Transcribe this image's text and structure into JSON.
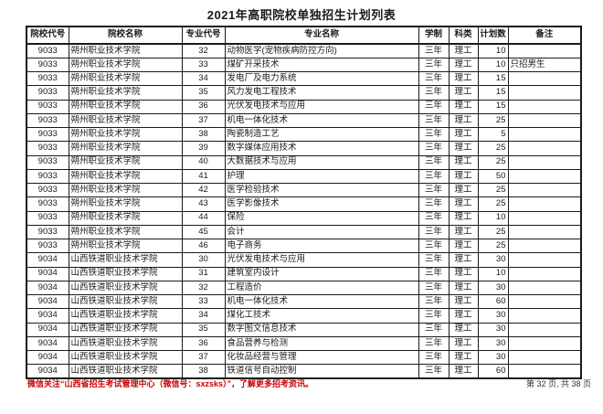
{
  "title": "2021年高职院校单独招生计划列表",
  "table": {
    "headers": [
      "院校代号",
      "院校名称",
      "专业代号",
      "专业名称",
      "学制",
      "科类",
      "计划数",
      "备注"
    ],
    "col_aligns": [
      "center",
      "left",
      "center",
      "left",
      "center",
      "center",
      "right",
      "left"
    ],
    "rows": [
      [
        "9033",
        "朔州职业技术学院",
        "32",
        "动物医学(宠物疾病防控方向)",
        "三年",
        "理工",
        "10",
        ""
      ],
      [
        "9033",
        "朔州职业技术学院",
        "33",
        "煤矿开采技术",
        "三年",
        "理工",
        "10",
        "只招男生"
      ],
      [
        "9033",
        "朔州职业技术学院",
        "34",
        "发电厂及电力系统",
        "三年",
        "理工",
        "15",
        ""
      ],
      [
        "9033",
        "朔州职业技术学院",
        "35",
        "风力发电工程技术",
        "三年",
        "理工",
        "15",
        ""
      ],
      [
        "9033",
        "朔州职业技术学院",
        "36",
        "光伏发电技术与应用",
        "三年",
        "理工",
        "15",
        ""
      ],
      [
        "9033",
        "朔州职业技术学院",
        "37",
        "机电一体化技术",
        "三年",
        "理工",
        "25",
        ""
      ],
      [
        "9033",
        "朔州职业技术学院",
        "38",
        "陶瓷制造工艺",
        "三年",
        "理工",
        "5",
        ""
      ],
      [
        "9033",
        "朔州职业技术学院",
        "39",
        "数字媒体应用技术",
        "三年",
        "理工",
        "25",
        ""
      ],
      [
        "9033",
        "朔州职业技术学院",
        "40",
        "大数据技术与应用",
        "三年",
        "理工",
        "25",
        ""
      ],
      [
        "9033",
        "朔州职业技术学院",
        "41",
        "护理",
        "三年",
        "理工",
        "50",
        ""
      ],
      [
        "9033",
        "朔州职业技术学院",
        "42",
        "医学检验技术",
        "三年",
        "理工",
        "25",
        ""
      ],
      [
        "9033",
        "朔州职业技术学院",
        "43",
        "医学影像技术",
        "三年",
        "理工",
        "25",
        ""
      ],
      [
        "9033",
        "朔州职业技术学院",
        "44",
        "保险",
        "三年",
        "理工",
        "10",
        ""
      ],
      [
        "9033",
        "朔州职业技术学院",
        "45",
        "会计",
        "三年",
        "理工",
        "25",
        ""
      ],
      [
        "9033",
        "朔州职业技术学院",
        "46",
        "电子商务",
        "三年",
        "理工",
        "25",
        ""
      ],
      [
        "9034",
        "山西铁道职业技术学院",
        "30",
        "光伏发电技术与应用",
        "三年",
        "理工",
        "30",
        ""
      ],
      [
        "9034",
        "山西铁道职业技术学院",
        "31",
        "建筑室内设计",
        "三年",
        "理工",
        "10",
        ""
      ],
      [
        "9034",
        "山西铁道职业技术学院",
        "32",
        "工程造价",
        "三年",
        "理工",
        "30",
        ""
      ],
      [
        "9034",
        "山西铁道职业技术学院",
        "33",
        "机电一体化技术",
        "三年",
        "理工",
        "60",
        ""
      ],
      [
        "9034",
        "山西铁道职业技术学院",
        "34",
        "煤化工技术",
        "三年",
        "理工",
        "30",
        ""
      ],
      [
        "9034",
        "山西铁道职业技术学院",
        "35",
        "数字图文信息技术",
        "三年",
        "理工",
        "30",
        ""
      ],
      [
        "9034",
        "山西铁道职业技术学院",
        "36",
        "食品营养与检测",
        "三年",
        "理工",
        "30",
        ""
      ],
      [
        "9034",
        "山西铁道职业技术学院",
        "37",
        "化妆品经营与管理",
        "三年",
        "理工",
        "30",
        ""
      ],
      [
        "9034",
        "山西铁道职业技术学院",
        "38",
        "铁道信号自动控制",
        "三年",
        "理工",
        "60",
        ""
      ]
    ]
  },
  "footer": {
    "notice": "微信关注“山西省招生考试管理中心（微信号：sxzsks）”，了解更多招考资讯。",
    "notice_color": "#cc0000",
    "page_info": "第 32 页, 共 38 页"
  }
}
